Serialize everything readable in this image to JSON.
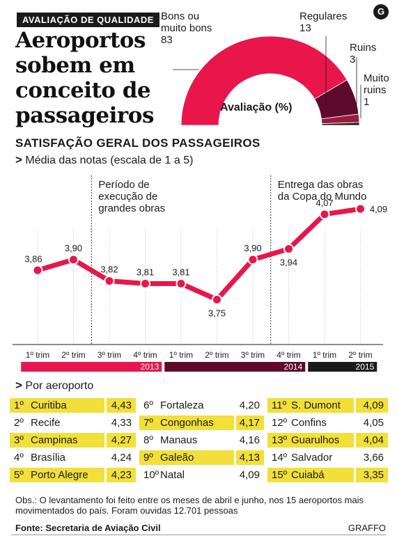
{
  "header": {
    "tag": "AVALIAÇÃO DE QUALIDADE",
    "headline": "Aeroportos sobem em conceito de passageiros",
    "logo": "G"
  },
  "donut": {
    "title": "Avaliação (%)",
    "slices": [
      {
        "label_line1": "Bons ou",
        "label_line2": "muito bons",
        "value": 83,
        "value_text": "83",
        "color": "#e8164a"
      },
      {
        "label_line1": "Regulares",
        "label_line2": "",
        "value": 13,
        "value_text": "13",
        "color": "#5e0a2c"
      },
      {
        "label_line1": "Ruins",
        "label_line2": "",
        "value": 3,
        "value_text": "3",
        "color": "#9c1a3e"
      },
      {
        "label_line1": "Muito",
        "label_line2": "ruins",
        "value": 1,
        "value_text": "1",
        "color": "#1a1a1a"
      }
    ]
  },
  "section": {
    "title": "SATISFAÇÃO GERAL DOS PASSAGEIROS",
    "subtitle_marker": ">",
    "subtitle": "Média das notas (escala de 1 a 5)"
  },
  "chart_data": {
    "type": "line",
    "title": "SATISFAÇÃO GERAL DOS PASSAGEIROS",
    "subtitle": "Média das notas (escala de 1 a 5)",
    "categories": [
      "1º trim",
      "2º trim",
      "3º trim",
      "4º trim",
      "1º trim",
      "2º trim",
      "3º trim",
      "4º trim",
      "1º trim",
      "2º trim"
    ],
    "values": [
      3.86,
      3.9,
      3.82,
      3.81,
      3.81,
      3.75,
      3.9,
      3.94,
      4.07,
      4.09
    ],
    "value_labels": [
      "3,86",
      "3,90",
      "3,82",
      "3,81",
      "3,81",
      "3,75",
      "3,90",
      "3,94",
      "4,07",
      "4,09"
    ],
    "years": [
      {
        "label": "2013",
        "start": 0,
        "end": 3,
        "color": "#e8164a"
      },
      {
        "label": "2014",
        "start": 4,
        "end": 7,
        "color": "#5e0a2c"
      },
      {
        "label": "2015",
        "start": 8,
        "end": 9,
        "color": "#1a1a1a"
      }
    ],
    "ylim": [
      3.6,
      4.2
    ],
    "line_color": "#e8164a",
    "annotations": [
      {
        "text_lines": [
          "Período de",
          "execução de",
          "grandes obras"
        ],
        "after_index": 1.5
      },
      {
        "text_lines": [
          "Entrega das obras",
          "da Copa do Mundo"
        ],
        "after_index": 6.5
      }
    ],
    "grid": "vertical dotted"
  },
  "ranking": {
    "subtitle_marker": ">",
    "subtitle": "Por aeroporto",
    "highlight_color": "#f2df3a",
    "columns": [
      [
        {
          "pos": "1º",
          "name": "Curitiba",
          "value": "4,43",
          "highlight": true
        },
        {
          "pos": "2º",
          "name": "Recife",
          "value": "4,33",
          "highlight": false
        },
        {
          "pos": "3º",
          "name": "Campinas",
          "value": "4,27",
          "highlight": true
        },
        {
          "pos": "4º",
          "name": "Brasília",
          "value": "4,24",
          "highlight": false
        },
        {
          "pos": "5º",
          "name": "Porto Alegre",
          "value": "4,23",
          "highlight": true
        }
      ],
      [
        {
          "pos": "6º",
          "name": "Fortaleza",
          "value": "4,20",
          "highlight": false
        },
        {
          "pos": "7º",
          "name": "Congonhas",
          "value": "4,17",
          "highlight": true
        },
        {
          "pos": "8º",
          "name": "Manaus",
          "value": "4,16",
          "highlight": false
        },
        {
          "pos": "9º",
          "name": "Galeão",
          "value": "4,13",
          "highlight": true
        },
        {
          "pos": "10º",
          "name": "Natal",
          "value": "4,09",
          "highlight": false
        }
      ],
      [
        {
          "pos": "11º",
          "name": "S. Dumont",
          "value": "4,09",
          "highlight": true
        },
        {
          "pos": "12º",
          "name": "Confins",
          "value": "4,05",
          "highlight": false
        },
        {
          "pos": "13º",
          "name": "Guarulhos",
          "value": "4,04",
          "highlight": true
        },
        {
          "pos": "14º",
          "name": "Salvador",
          "value": "3,66",
          "highlight": false
        },
        {
          "pos": "15º",
          "name": "Cuiabá",
          "value": "3,35",
          "highlight": true
        }
      ]
    ]
  },
  "footer": {
    "obs": "Obs.: O levantamento foi feito entre os meses de abril e junho, nos 15 aeroportos mais movimentados do país. Foram ouvidas 12.701 pessoas",
    "source": "Fonte: Secretaria de Aviação Civil",
    "credit": "GRAFFO"
  }
}
